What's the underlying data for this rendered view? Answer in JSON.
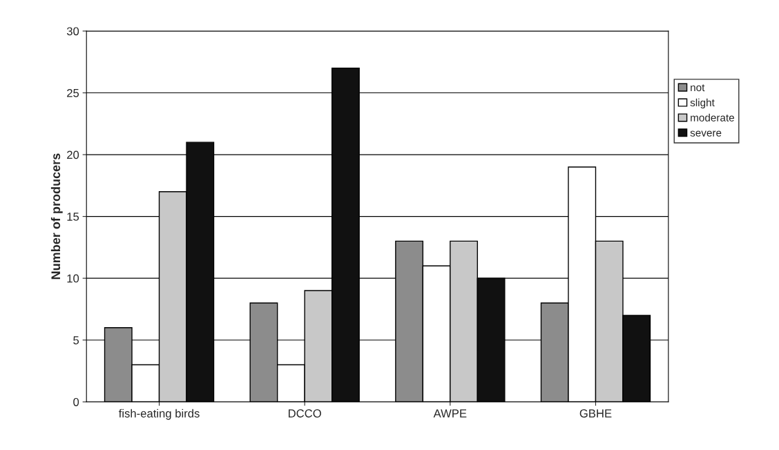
{
  "chart_data": {
    "type": "bar",
    "ylabel": "Number of producers",
    "categories": [
      "fish-eating birds",
      "DCCO",
      "AWPE",
      "GBHE"
    ],
    "series": [
      {
        "name": "not",
        "color": "#8c8c8c",
        "values": [
          6,
          8,
          13,
          8
        ]
      },
      {
        "name": "slight",
        "color": "#ffffff",
        "values": [
          3,
          3,
          11,
          19
        ]
      },
      {
        "name": "moderate",
        "color": "#c8c8c8",
        "values": [
          17,
          9,
          13,
          13
        ]
      },
      {
        "name": "severe",
        "color": "#111111",
        "values": [
          21,
          27,
          10,
          7
        ]
      }
    ],
    "ylim": [
      0,
      30
    ],
    "yticks": [
      0,
      5,
      10,
      15,
      20,
      25,
      30
    ],
    "grid": "y",
    "legend": "right"
  }
}
